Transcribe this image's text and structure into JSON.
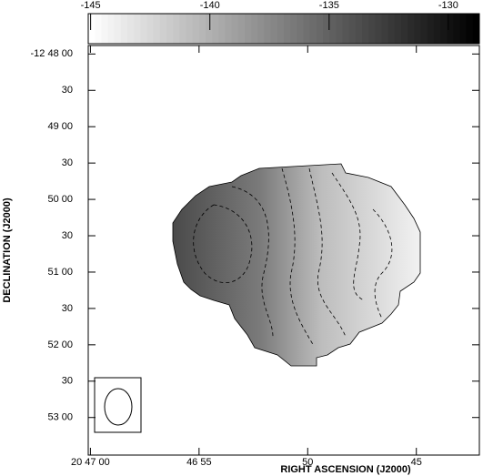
{
  "chart_data": {
    "type": "image",
    "xlabel": "RIGHT ASCENSION (J2000)",
    "ylabel": "DECLINATION (J2000)",
    "xlim": [
      74820.1,
      74802.1
    ],
    "xticks": [
      {
        "value": 74820,
        "label": "20 47 00"
      },
      {
        "value": 74815,
        "label": "46 55"
      },
      {
        "value": 74810,
        "label": "50"
      },
      {
        "value": 74805,
        "label": "45"
      }
    ],
    "ylim": [
      -46073,
      -46411
    ],
    "yticks": [
      {
        "value": -46080,
        "label": "-12 48 00"
      },
      {
        "value": -46110,
        "label": "30"
      },
      {
        "value": -46140,
        "label": "49 00"
      },
      {
        "value": -46170,
        "label": "30"
      },
      {
        "value": -46200,
        "label": "50 00"
      },
      {
        "value": -46230,
        "label": "30"
      },
      {
        "value": -46260,
        "label": "51 00"
      },
      {
        "value": -46290,
        "label": "30"
      },
      {
        "value": -46320,
        "label": "52 00"
      },
      {
        "value": -46350,
        "label": "30"
      },
      {
        "value": -46380,
        "label": "53 00"
      }
    ],
    "clim": [
      -145.1,
      -128.7
    ],
    "cticks": [
      -145,
      -140,
      -135,
      -130
    ],
    "colormap": [
      "#ffffff",
      "#000000"
    ]
  }
}
